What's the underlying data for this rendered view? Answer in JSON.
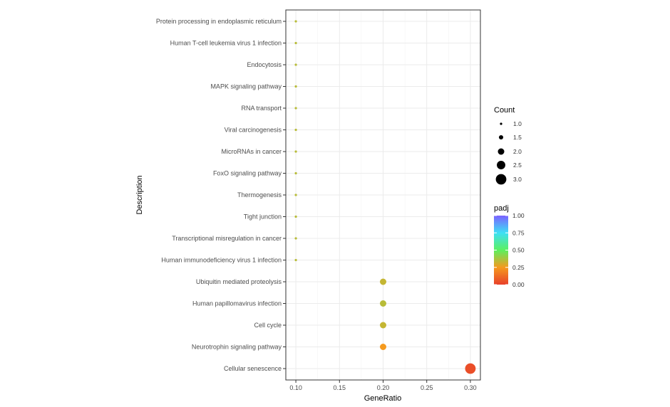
{
  "chart_data": {
    "type": "scatter",
    "xlabel": "GeneRatio",
    "ylabel": "Description",
    "xlim": [
      0.0885,
      0.3115
    ],
    "x_ticks": [
      0.1,
      0.15,
      0.2,
      0.25,
      0.3
    ],
    "x_tick_labels": [
      "0.10",
      "0.15",
      "0.20",
      "0.25",
      "0.30"
    ],
    "grid": true,
    "points": [
      {
        "description": "Protein processing in endoplasmic reticulum",
        "gene_ratio": 0.1,
        "count": 1,
        "padj": 0.35
      },
      {
        "description": "Human T-cell leukemia virus 1 infection",
        "gene_ratio": 0.1,
        "count": 1,
        "padj": 0.35
      },
      {
        "description": "Endocytosis",
        "gene_ratio": 0.1,
        "count": 1,
        "padj": 0.35
      },
      {
        "description": "MAPK signaling pathway",
        "gene_ratio": 0.1,
        "count": 1,
        "padj": 0.35
      },
      {
        "description": "RNA transport",
        "gene_ratio": 0.1,
        "count": 1,
        "padj": 0.35
      },
      {
        "description": "Viral carcinogenesis",
        "gene_ratio": 0.1,
        "count": 1,
        "padj": 0.35
      },
      {
        "description": "MicroRNAs in cancer",
        "gene_ratio": 0.1,
        "count": 1,
        "padj": 0.35
      },
      {
        "description": "FoxO signaling pathway",
        "gene_ratio": 0.1,
        "count": 1,
        "padj": 0.35
      },
      {
        "description": "Thermogenesis",
        "gene_ratio": 0.1,
        "count": 1,
        "padj": 0.35
      },
      {
        "description": "Tight junction",
        "gene_ratio": 0.1,
        "count": 1,
        "padj": 0.35
      },
      {
        "description": "Transcriptional misregulation in cancer",
        "gene_ratio": 0.1,
        "count": 1,
        "padj": 0.35
      },
      {
        "description": "Human immunodeficiency virus 1 infection",
        "gene_ratio": 0.1,
        "count": 1,
        "padj": 0.35
      },
      {
        "description": "Ubiquitin mediated proteolysis",
        "gene_ratio": 0.2,
        "count": 2,
        "padj": 0.33
      },
      {
        "description": "Human papillomavirus infection",
        "gene_ratio": 0.2,
        "count": 2,
        "padj": 0.35
      },
      {
        "description": "Cell cycle",
        "gene_ratio": 0.2,
        "count": 2,
        "padj": 0.33
      },
      {
        "description": "Neurotrophin signaling pathway",
        "gene_ratio": 0.2,
        "count": 2,
        "padj": 0.25
      },
      {
        "description": "Cellular senescence",
        "gene_ratio": 0.3,
        "count": 3,
        "padj": 0.04
      }
    ],
    "legend": {
      "placement": "right",
      "size": {
        "title": "Count",
        "values": [
          1.0,
          1.5,
          2.0,
          2.5,
          3.0
        ],
        "labels": [
          "1.0",
          "1.5",
          "2.0",
          "2.5",
          "3.0"
        ]
      },
      "color": {
        "title": "padj",
        "range": [
          0,
          1
        ],
        "values": [
          1.0,
          0.75,
          0.5,
          0.25,
          0.0
        ],
        "labels": [
          "1.00",
          "0.75",
          "0.50",
          "0.25",
          "0.00"
        ],
        "gradient": [
          "#7b61ff",
          "#3de0f5",
          "#5cf05f",
          "#f59a1e",
          "#e8402a"
        ]
      }
    }
  }
}
